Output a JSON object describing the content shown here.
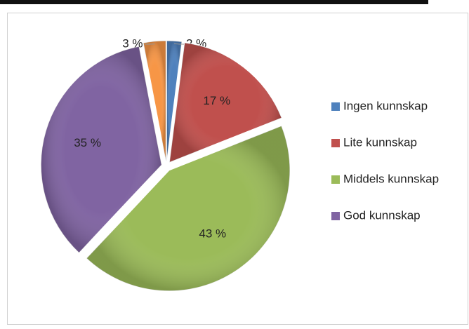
{
  "chart_data": {
    "type": "pie",
    "categories": [
      "Ingen kunnskap",
      "Lite kunnskap",
      "Middels kunnskap",
      "God kunnskap",
      null
    ],
    "values": [
      2,
      17,
      43,
      35,
      3
    ],
    "value_labels": [
      "2 %",
      "17 %",
      "43 %",
      "35 %",
      "3 %"
    ],
    "colors": [
      "#4f81bd",
      "#c0504d",
      "#9bbb59",
      "#8064a2",
      "#f79646"
    ],
    "legend": "right"
  }
}
